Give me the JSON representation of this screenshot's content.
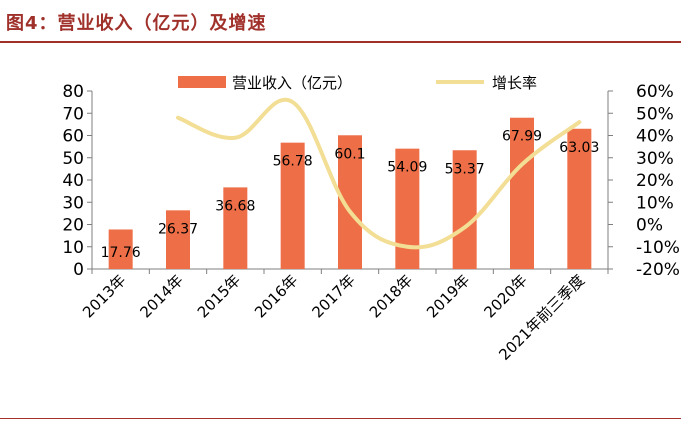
{
  "figure": {
    "title": "图4：营业收入（亿元）及增速"
  },
  "colors": {
    "title": "#a0302a",
    "bar": "#ee6f47",
    "line": "#f3de95",
    "rule": "#a0302a"
  },
  "chart_data": {
    "type": "bar",
    "categories": [
      "2013年",
      "2014年",
      "2015年",
      "2016年",
      "2017年",
      "2018年",
      "2019年",
      "2020年",
      "2021年前三季度"
    ],
    "series": [
      {
        "name": "营业收入（亿元）",
        "type": "bar",
        "axis": "left",
        "values": [
          17.76,
          26.37,
          36.68,
          56.78,
          60.1,
          54.09,
          53.37,
          67.99,
          63.03
        ],
        "labels": [
          "17.76",
          "26.37",
          "36.68",
          "56.78",
          "60.1",
          "54.09",
          "53.37",
          "67.99",
          "63.03"
        ]
      },
      {
        "name": "增长率",
        "type": "line",
        "axis": "right",
        "values": [
          null,
          48,
          39,
          55,
          5.8,
          -10,
          -1.3,
          27,
          46
        ]
      }
    ],
    "left_axis": {
      "ylim": [
        0,
        80
      ],
      "ticks": [
        "0",
        "10",
        "20",
        "30",
        "40",
        "50",
        "60",
        "70",
        "80"
      ]
    },
    "right_axis": {
      "ylim": [
        -20,
        60
      ],
      "ticks": [
        "-20%",
        "-10%",
        "0%",
        "10%",
        "20%",
        "30%",
        "40%",
        "50%",
        "60%"
      ]
    },
    "legend_position": "top",
    "grid": false
  }
}
